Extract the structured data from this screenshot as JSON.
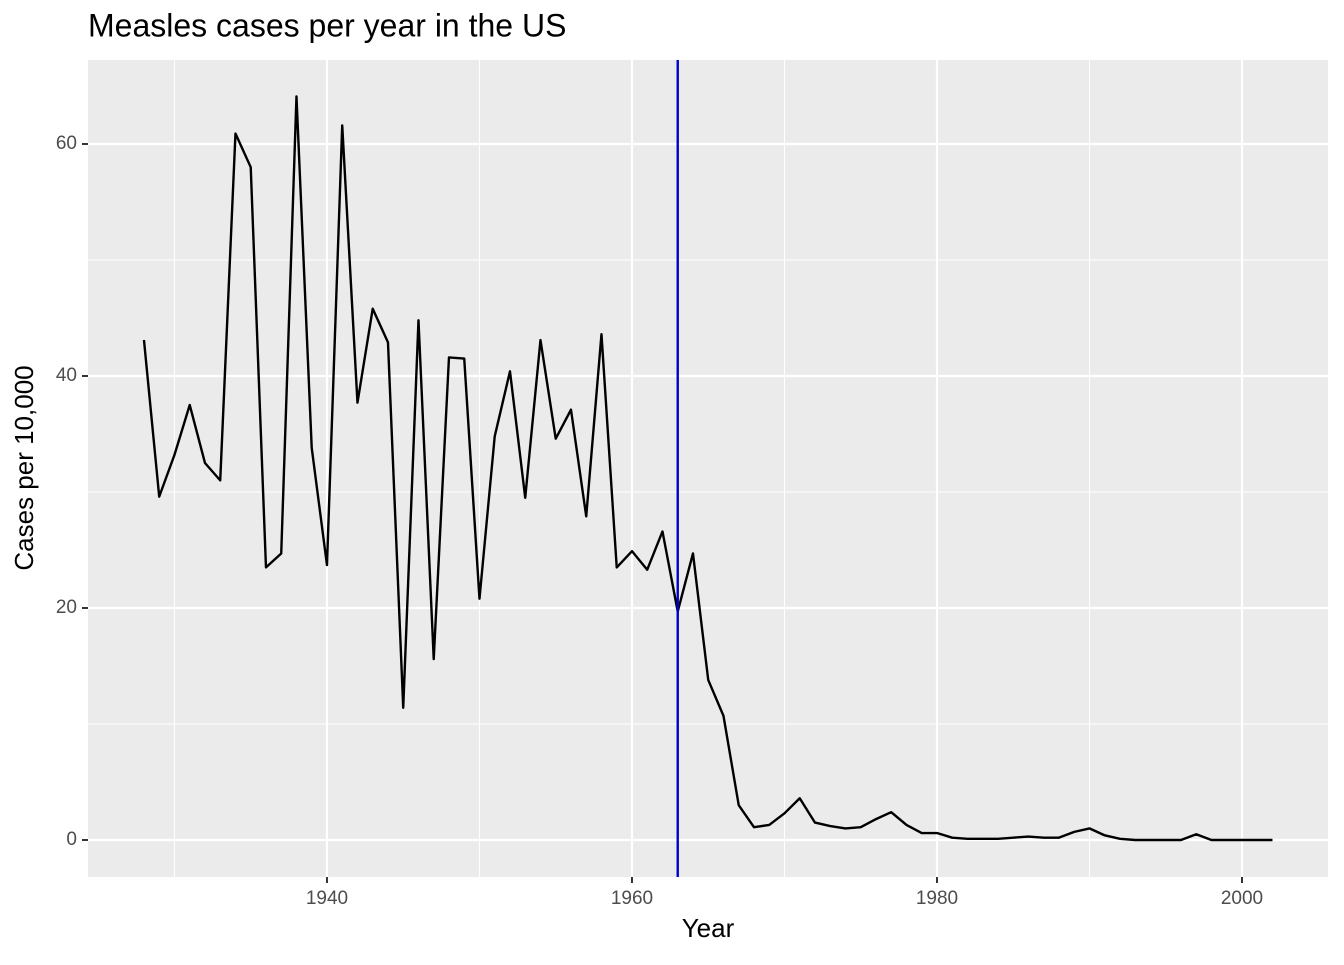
{
  "chart_data": {
    "type": "line",
    "title": "Measles cases per year in the US",
    "x_label": "Year",
    "y_label": "Cases per 10,000",
    "x": [
      1928,
      1929,
      1930,
      1931,
      1932,
      1933,
      1934,
      1935,
      1936,
      1937,
      1938,
      1939,
      1940,
      1941,
      1942,
      1943,
      1944,
      1945,
      1946,
      1947,
      1948,
      1949,
      1950,
      1951,
      1952,
      1953,
      1954,
      1955,
      1956,
      1957,
      1958,
      1959,
      1960,
      1961,
      1962,
      1963,
      1964,
      1965,
      1966,
      1967,
      1968,
      1969,
      1970,
      1971,
      1972,
      1973,
      1974,
      1975,
      1976,
      1977,
      1978,
      1979,
      1980,
      1981,
      1982,
      1983,
      1984,
      1985,
      1986,
      1987,
      1988,
      1989,
      1990,
      1991,
      1992,
      1993,
      1994,
      1995,
      1996,
      1997,
      1998,
      1999,
      2000,
      2001,
      2002
    ],
    "values": [
      43.1,
      29.6,
      33.2,
      37.5,
      32.5,
      31.0,
      60.9,
      58.0,
      23.5,
      24.7,
      64.1,
      33.8,
      23.7,
      61.6,
      37.7,
      45.8,
      42.9,
      11.4,
      44.8,
      15.6,
      41.6,
      41.5,
      20.8,
      34.8,
      40.4,
      29.5,
      43.1,
      34.6,
      37.1,
      27.9,
      43.6,
      23.5,
      24.9,
      23.3,
      26.6,
      19.7,
      24.7,
      13.8,
      10.7,
      3.0,
      1.1,
      1.3,
      2.3,
      3.6,
      1.5,
      1.2,
      1.0,
      1.1,
      1.8,
      2.4,
      1.3,
      0.6,
      0.6,
      0.2,
      0.1,
      0.1,
      0.1,
      0.2,
      0.3,
      0.2,
      0.2,
      0.7,
      1.0,
      0.4,
      0.1,
      0.0,
      0.0,
      0.0,
      0.0,
      0.5,
      0.0,
      0.0,
      0.0,
      0.0,
      0.0
    ],
    "color": "#000000",
    "vline": {
      "x": 1963,
      "color": "#0000cc"
    },
    "xlim": [
      1924.33,
      2005.64
    ],
    "ylim": [
      -3.19,
      67.24
    ],
    "xticks": [
      1940,
      1960,
      1980,
      2000
    ],
    "yticks": [
      0,
      20,
      40,
      60
    ],
    "x_minor_grid": [
      1930,
      1950,
      1970,
      1990
    ],
    "y_minor_grid": [
      10,
      30,
      50
    ],
    "grid": true
  }
}
